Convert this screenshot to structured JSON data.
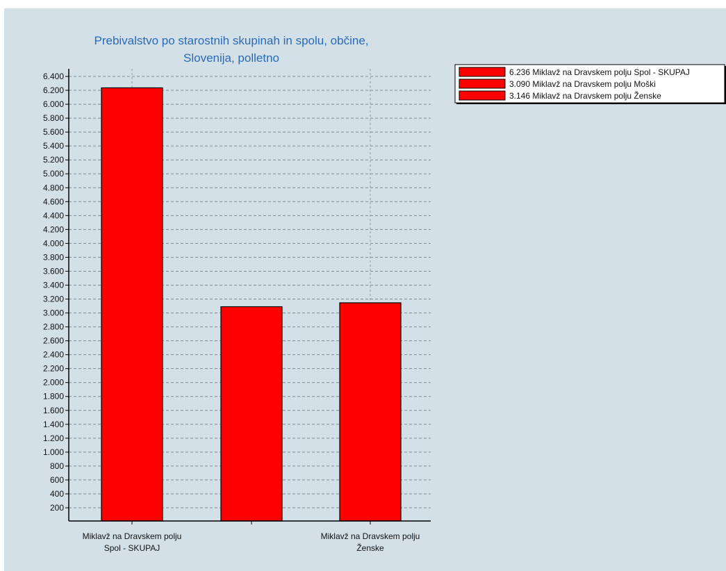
{
  "chart_data": {
    "type": "bar",
    "title_lines": [
      "Prebivalstvo po starostnih skupinah in spolu, občine,",
      "Slovenija, polletno"
    ],
    "categories": [
      "Miklavž na Dravskem polju Spol - SKUPAJ",
      "Miklavž na Dravskem polju Moški",
      "Miklavž na Dravskem polju Ženske"
    ],
    "category_labels": [
      [
        "Miklavž na Dravskem polju",
        "Spol - SKUPAJ"
      ],
      [
        "",
        ""
      ],
      [
        "Miklavž na Dravskem polju",
        "Ženske"
      ]
    ],
    "values": [
      6236,
      3090,
      3146
    ],
    "ylim": [
      0,
      6400
    ],
    "ytick_step": 200,
    "ytick_labels": [
      "6.400",
      "6.200",
      "6.000",
      "5.800",
      "5.600",
      "5.400",
      "5.200",
      "5.000",
      "4.800",
      "4.600",
      "4.400",
      "4.200",
      "4.000",
      "3.800",
      "3.600",
      "3.400",
      "3.200",
      "3.000",
      "2.800",
      "2.600",
      "2.400",
      "2.200",
      "2.000",
      "1.800",
      "1.600",
      "1.400",
      "1.200",
      "1.000",
      "800",
      "600",
      "400",
      "200"
    ],
    "bar_color": "#ff0000",
    "grid": true,
    "legend_position": "top-right",
    "legend": [
      "6.236 Miklavž na Dravskem polju Spol - SKUPAJ",
      "3.090 Miklavž na Dravskem polju Moški",
      "3.146 Miklavž na Dravskem polju Ženske"
    ],
    "background_color": "#d3e0e8"
  }
}
